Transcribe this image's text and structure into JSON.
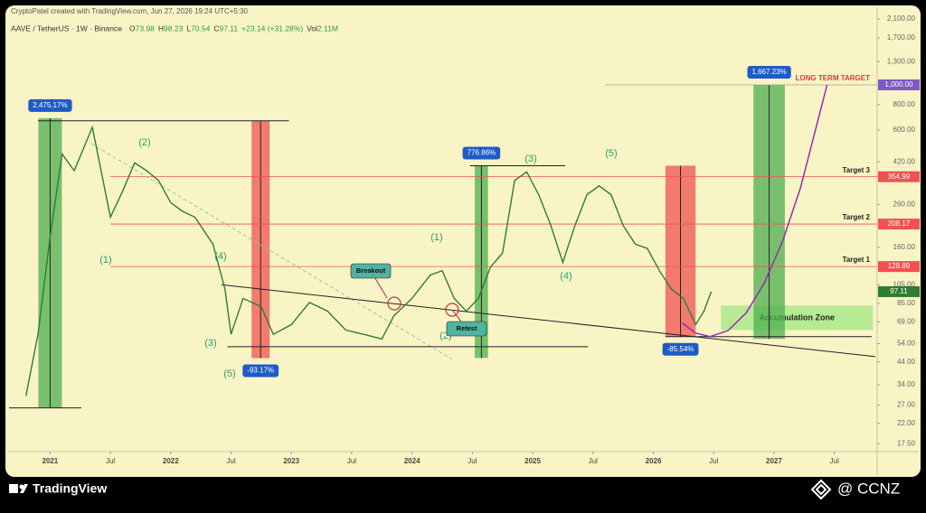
{
  "header": {
    "credit": "CryptoPatel created with TradingView.com, Jun 27, 2026 19:24 UTC+5:30",
    "symbol": "AAVE / TetherUS · 1W · Binance",
    "ohlc": [
      {
        "key": "O",
        "value": "73.98"
      },
      {
        "key": "H",
        "value": "98.23"
      },
      {
        "key": "L",
        "value": "70.54"
      },
      {
        "key": "C",
        "value": "97.11"
      },
      {
        "key": "",
        "value": "+23.14 (+31.28%)"
      },
      {
        "key": "Vol",
        "value": "2.11M"
      }
    ]
  },
  "chart_data": {
    "type": "line",
    "log_scale": true,
    "color": "#2e7d32",
    "x": [
      2020.8,
      2020.9,
      2021.0,
      2021.1,
      2021.2,
      2021.35,
      2021.5,
      2021.6,
      2021.7,
      2021.8,
      2021.9,
      2022.0,
      2022.1,
      2022.2,
      2022.35,
      2022.45,
      2022.5,
      2022.6,
      2022.75,
      2022.85,
      2023.0,
      2023.15,
      2023.3,
      2023.45,
      2023.6,
      2023.75,
      2023.85,
      2024.0,
      2024.15,
      2024.25,
      2024.35,
      2024.45,
      2024.55,
      2024.65,
      2024.75,
      2024.85,
      2024.95,
      2025.05,
      2025.15,
      2025.25,
      2025.35,
      2025.45,
      2025.55,
      2025.65,
      2025.75,
      2025.85,
      2025.95,
      2026.05,
      2026.15,
      2026.25,
      2026.35,
      2026.42,
      2026.48
    ],
    "values": [
      30,
      60,
      180,
      458,
      380,
      620,
      225,
      300,
      415,
      380,
      340,
      265,
      240,
      225,
      166,
      100,
      60,
      90,
      82,
      60,
      67,
      86,
      78,
      63,
      60,
      57,
      74,
      90,
      117,
      123,
      90,
      78,
      90,
      128,
      150,
      340,
      375,
      290,
      205,
      135,
      205,
      290,
      320,
      290,
      205,
      166,
      158,
      123,
      100,
      90,
      67,
      78,
      97.11
    ],
    "xlim": [
      2020.66,
      2027.84
    ],
    "xticks": [
      {
        "value": 2021,
        "label": "2021"
      },
      {
        "value": 2021.5,
        "label": "Jul"
      },
      {
        "value": 2022,
        "label": "2022"
      },
      {
        "value": 2022.5,
        "label": "Jul"
      },
      {
        "value": 2023,
        "label": "2023"
      },
      {
        "value": 2023.5,
        "label": "Jul"
      },
      {
        "value": 2024,
        "label": "2024"
      },
      {
        "value": 2024.5,
        "label": "Jul"
      },
      {
        "value": 2025,
        "label": "2025"
      },
      {
        "value": 2025.5,
        "label": "Jul"
      },
      {
        "value": 2026,
        "label": "2026"
      },
      {
        "value": 2026.5,
        "label": "Jul"
      },
      {
        "value": 2027,
        "label": "2027"
      },
      {
        "value": 2027.5,
        "label": "Jul"
      }
    ],
    "ylim": [
      16,
      2400
    ],
    "yticks": [
      {
        "value": 2100,
        "label": "2,100.00"
      },
      {
        "value": 1700,
        "label": "1,700.00"
      },
      {
        "value": 1300,
        "label": "1,300.00"
      },
      {
        "value": 800,
        "label": "800.00"
      },
      {
        "value": 600,
        "label": "600.00"
      },
      {
        "value": 420,
        "label": "420.00"
      },
      {
        "value": 260,
        "label": "260.00"
      },
      {
        "value": 160,
        "label": "160.00"
      },
      {
        "value": 105,
        "label": "105.00"
      },
      {
        "value": 85,
        "label": "85.00"
      },
      {
        "value": 69,
        "label": "69.00"
      },
      {
        "value": 54,
        "label": "54.00"
      },
      {
        "value": 44,
        "label": "44.00"
      },
      {
        "value": 34,
        "label": "34.00"
      },
      {
        "value": 27,
        "label": "27.00"
      },
      {
        "value": 22,
        "label": "22.00"
      },
      {
        "value": 17.5,
        "label": "17.50"
      }
    ],
    "levels": [
      {
        "name": "LONG TERM TARGET",
        "value": 1000,
        "value_label": "1,000.00",
        "start": 2025.6,
        "color": "#9e9e9e",
        "tag_color": "#7e57c2",
        "text_color": "#e53935"
      },
      {
        "name": "Target 3",
        "value": 354.99,
        "value_label": "354.99",
        "start": 2021.5,
        "color": "#ef5350",
        "tag_color": "#ef5350",
        "text_color": "#222222"
      },
      {
        "name": "Target 2",
        "value": 208.17,
        "value_label": "208.17",
        "start": 2021.5,
        "color": "#ef5350",
        "tag_color": "#ef5350",
        "text_color": "#222222"
      },
      {
        "name": "Target 1",
        "value": 128.89,
        "value_label": "128.89",
        "start": 2021.5,
        "color": "#ef5350",
        "tag_color": "#ef5350",
        "text_color": "#222222"
      }
    ],
    "last_price": {
      "value": 97.11,
      "value_label": "97.11",
      "color": "#2e7d32"
    },
    "moves": [
      {
        "x": [
          2020.903,
          2021.098
        ],
        "range": [
          26.2,
          687
        ],
        "color": "#4caf50",
        "value": 2475.17,
        "value_label": "2,475.17%"
      },
      {
        "x": [
          2022.67,
          2022.82
        ],
        "range": [
          45.9,
          667
        ],
        "color": "#ef5350",
        "value": -93.17,
        "value_label": "-93.17%"
      },
      {
        "x": [
          2024.52,
          2024.63
        ],
        "range": [
          46,
          402
        ],
        "color": "#4caf50",
        "value": 776.86,
        "value_label": "776.86%"
      },
      {
        "x": [
          2026.1,
          2026.35
        ],
        "range": [
          58.5,
          402
        ],
        "color": "#ef5350",
        "value": -85.54,
        "value_label": "-85.54%"
      },
      {
        "x": [
          2026.83,
          2027.09
        ],
        "range": [
          57,
          1000
        ],
        "color": "#4caf50",
        "value": 1667.23,
        "value_label": "1,667.23%"
      }
    ],
    "lines": [
      {
        "x": [
          2020.9,
          2022.98
        ],
        "y": [
          667,
          667
        ],
        "color": "#222222",
        "dash": false
      },
      {
        "x": [
          2020.66,
          2021.26
        ],
        "y": [
          26.2,
          26.2
        ],
        "color": "#222222",
        "dash": false
      },
      {
        "x": [
          2021.34,
          2024.33
        ],
        "y": [
          516,
          45.4
        ],
        "color": "#80cbc4",
        "dash": true
      },
      {
        "x": [
          2022.42,
          2027.84
        ],
        "y": [
          105,
          46.7
        ],
        "color": "#222222",
        "dash": false
      },
      {
        "x": [
          2022.47,
          2025.46
        ],
        "y": [
          52.2,
          52.2
        ],
        "color": "#222222",
        "dash": false
      },
      {
        "x": [
          2024.48,
          2025.27
        ],
        "y": [
          402,
          402
        ],
        "color": "#222222",
        "dash": false
      },
      {
        "x": [
          2026.1,
          2027.81
        ],
        "y": [
          58.5,
          58.5
        ],
        "color": "#222222",
        "dash": false
      }
    ],
    "zone": {
      "label": "Accumulation Zone",
      "x": [
        2026.56,
        2027.82
      ],
      "range": [
        63,
        83
      ],
      "color": "#a5e887"
    },
    "curve": {
      "color": "#9c27b0",
      "x": [
        2026.24,
        2026.35,
        2026.47,
        2026.62,
        2026.77,
        2026.92,
        2027.07,
        2027.22,
        2027.44
      ],
      "values": [
        68.3,
        60.9,
        58.5,
        62.7,
        76.5,
        107,
        171,
        314,
        1000
      ]
    },
    "waves": [
      "(1)",
      "(2)",
      "(3)",
      "(4)",
      "(5)",
      "(1)",
      "(2)",
      "(3)",
      "(4)",
      "(5)"
    ],
    "callouts": [
      "Breakout",
      "Retest"
    ]
  },
  "footer": {
    "brand": "TradingView",
    "watermark": "@ CCNZ"
  }
}
